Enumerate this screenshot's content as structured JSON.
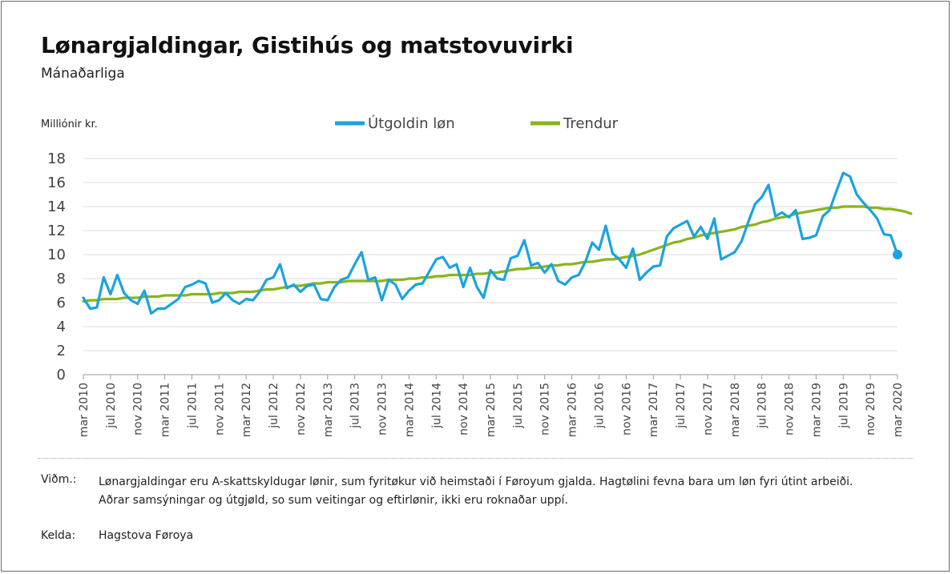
{
  "title": "Lønargjaldingar, Gistihús og matstovuvirki",
  "subtitle": "Mánaðarliga",
  "colors": {
    "series_wages": "#1aa3e0",
    "series_trend": "#8ab51b",
    "grid": "#dedede",
    "axis": "#9a9a9a"
  },
  "footer": {
    "note_label": "Viðm.:",
    "note_text": "Lønargjaldingar eru A-skattskyldugar lønir, sum fyritøkur við heimstaði í Føroyum gjalda. Hagtølini fevna bara um løn fyri útint arbeiði. Aðrar samsýningar og útgjøld, so sum veitingar og eftirlønir, ikki eru roknaðar uppí.",
    "source_label": "Kelda:",
    "source_text": "Hagstova Føroya"
  },
  "chart_data": {
    "type": "line",
    "ylabel": "Milliónir kr.",
    "ylim": [
      0,
      18
    ],
    "yticks": [
      0,
      2,
      4,
      6,
      8,
      10,
      12,
      14,
      16,
      18
    ],
    "grid": true,
    "legend_position": "top-center",
    "x_start": "2010-03",
    "x_end": "2020-03",
    "x_tick_labels": [
      "mar 2010",
      "jul 2010",
      "nov 2010",
      "mar 2011",
      "jul 2011",
      "nov 2011",
      "mar 2012",
      "jul 2012",
      "nov 2012",
      "mar 2013",
      "jul 2013",
      "nov 2013",
      "mar 2014",
      "jul 2014",
      "nov 2014",
      "mar 2015",
      "jul 2015",
      "nov 2015",
      "mar 2016",
      "jul 2016",
      "nov 2016",
      "mar 2017",
      "jul 2017",
      "nov 2017",
      "mar 2018",
      "jul 2018",
      "nov 2018",
      "mar 2019",
      "jul 2019",
      "nov 2019",
      "mar 2020"
    ],
    "series": [
      {
        "name": "Útgoldin løn",
        "color": "#1aa3e0",
        "values": [
          6.4,
          5.5,
          5.6,
          8.1,
          6.7,
          8.3,
          6.8,
          6.2,
          5.9,
          7.0,
          5.1,
          5.5,
          5.5,
          5.9,
          6.3,
          7.3,
          7.5,
          7.8,
          7.6,
          6.0,
          6.2,
          6.8,
          6.2,
          5.9,
          6.3,
          6.2,
          6.9,
          7.9,
          8.1,
          9.2,
          7.2,
          7.5,
          6.9,
          7.4,
          7.5,
          6.3,
          6.2,
          7.3,
          7.9,
          8.1,
          9.2,
          10.2,
          7.9,
          8.1,
          6.2,
          7.9,
          7.5,
          6.3,
          7.0,
          7.5,
          7.6,
          8.6,
          9.6,
          9.8,
          8.9,
          9.2,
          7.3,
          8.9,
          7.3,
          6.4,
          8.7,
          8.0,
          7.9,
          9.7,
          9.9,
          11.2,
          9.1,
          9.3,
          8.5,
          9.2,
          7.8,
          7.5,
          8.1,
          8.3,
          9.4,
          11.0,
          10.4,
          12.4,
          10.1,
          9.6,
          8.9,
          10.5,
          7.9,
          8.5,
          9.0,
          9.1,
          11.5,
          12.2,
          12.5,
          12.8,
          11.5,
          12.3,
          11.3,
          13.0,
          9.6,
          9.9,
          10.2,
          11.1,
          12.7,
          14.2,
          14.8,
          15.8,
          13.2,
          13.5,
          13.1,
          13.7,
          11.3,
          11.4,
          11.6,
          13.2,
          13.7,
          15.3,
          16.8,
          16.5,
          15.0,
          14.3,
          13.7,
          13.0,
          11.7,
          11.6,
          10.0
        ],
        "endpoint_marker": true
      },
      {
        "name": "Trendur",
        "color": "#8ab51b",
        "values": [
          6.1,
          6.2,
          6.2,
          6.3,
          6.3,
          6.3,
          6.4,
          6.4,
          6.4,
          6.5,
          6.5,
          6.5,
          6.6,
          6.6,
          6.6,
          6.6,
          6.7,
          6.7,
          6.7,
          6.7,
          6.8,
          6.8,
          6.8,
          6.9,
          6.9,
          6.9,
          7.0,
          7.1,
          7.1,
          7.2,
          7.3,
          7.4,
          7.4,
          7.5,
          7.6,
          7.6,
          7.7,
          7.7,
          7.7,
          7.8,
          7.8,
          7.8,
          7.8,
          7.8,
          7.8,
          7.9,
          7.9,
          7.9,
          8.0,
          8.0,
          8.1,
          8.1,
          8.2,
          8.2,
          8.3,
          8.3,
          8.3,
          8.3,
          8.4,
          8.4,
          8.5,
          8.5,
          8.6,
          8.7,
          8.8,
          8.8,
          8.9,
          8.9,
          9.0,
          9.1,
          9.1,
          9.2,
          9.2,
          9.3,
          9.4,
          9.4,
          9.5,
          9.6,
          9.6,
          9.7,
          9.8,
          9.9,
          10.0,
          10.2,
          10.4,
          10.6,
          10.8,
          11.0,
          11.1,
          11.3,
          11.4,
          11.6,
          11.7,
          11.8,
          11.9,
          12.0,
          12.1,
          12.3,
          12.4,
          12.5,
          12.7,
          12.8,
          13.0,
          13.1,
          13.2,
          13.4,
          13.5,
          13.6,
          13.7,
          13.8,
          13.9,
          13.9,
          14.0,
          14.0,
          14.0,
          14.0,
          13.9,
          13.9,
          13.8,
          13.8,
          13.7,
          13.6,
          13.4
        ]
      }
    ]
  }
}
